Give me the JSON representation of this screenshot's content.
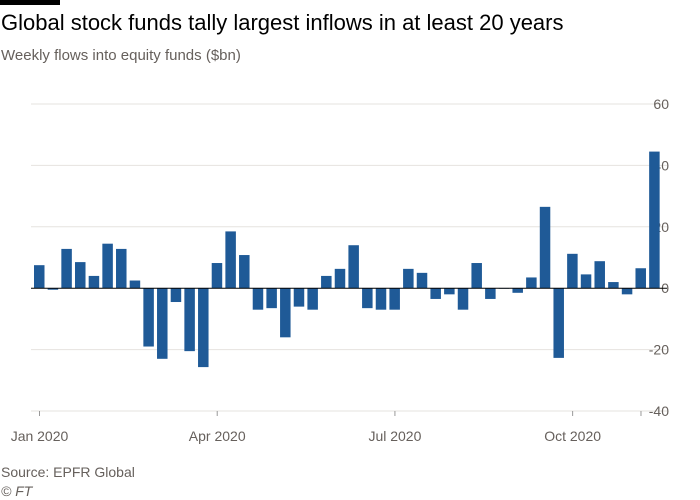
{
  "title": "Global stock funds tally largest inflows in at least 20 years",
  "subtitle": "Weekly flows into equity funds ($bn)",
  "source": "Source: EPFR Global",
  "credit": "© FT",
  "colors": {
    "bar": "#1f5a97",
    "grid": "#e6e3df",
    "zero": "#000000",
    "text": "#66605c",
    "accent": "#000000"
  },
  "chart_data": {
    "type": "bar",
    "title": "Global stock funds tally largest inflows in at least 20 years",
    "subtitle": "Weekly flows into equity funds ($bn)",
    "xlabel": "",
    "ylabel": "",
    "ylim": [
      -40,
      60
    ],
    "yticks": [
      60,
      40,
      20,
      0,
      -20,
      -40
    ],
    "y_axis_position": "right",
    "grid": true,
    "legend": "none",
    "x_tick_labels": [
      "Jan 2020",
      "Apr 2020",
      "Jul 2020",
      "Oct 2020"
    ],
    "x_tick_positions": [
      0.5,
      13.5,
      26.5,
      39.5
    ],
    "minor_tick_positions": [
      0.5,
      13.5,
      26.5,
      39.5,
      44.5
    ],
    "series": [
      {
        "values": [
          7.5,
          -0.5,
          12.8,
          8.5,
          4,
          14.5,
          12.8,
          2.5,
          -19,
          -23,
          -4.5,
          -20.5,
          -25.7,
          8.2,
          18.5,
          10.8,
          -7,
          -6.5,
          -16,
          -6,
          -7,
          4,
          6.3,
          14,
          -6.5,
          -7,
          -7,
          6.3,
          5,
          -3.5,
          -2,
          -7,
          8.2,
          -3.5,
          0,
          -1.5,
          3.5,
          26.5,
          -22.7,
          11.2,
          4.5,
          8.8,
          2,
          -2,
          6.5,
          44.5
        ]
      }
    ]
  }
}
